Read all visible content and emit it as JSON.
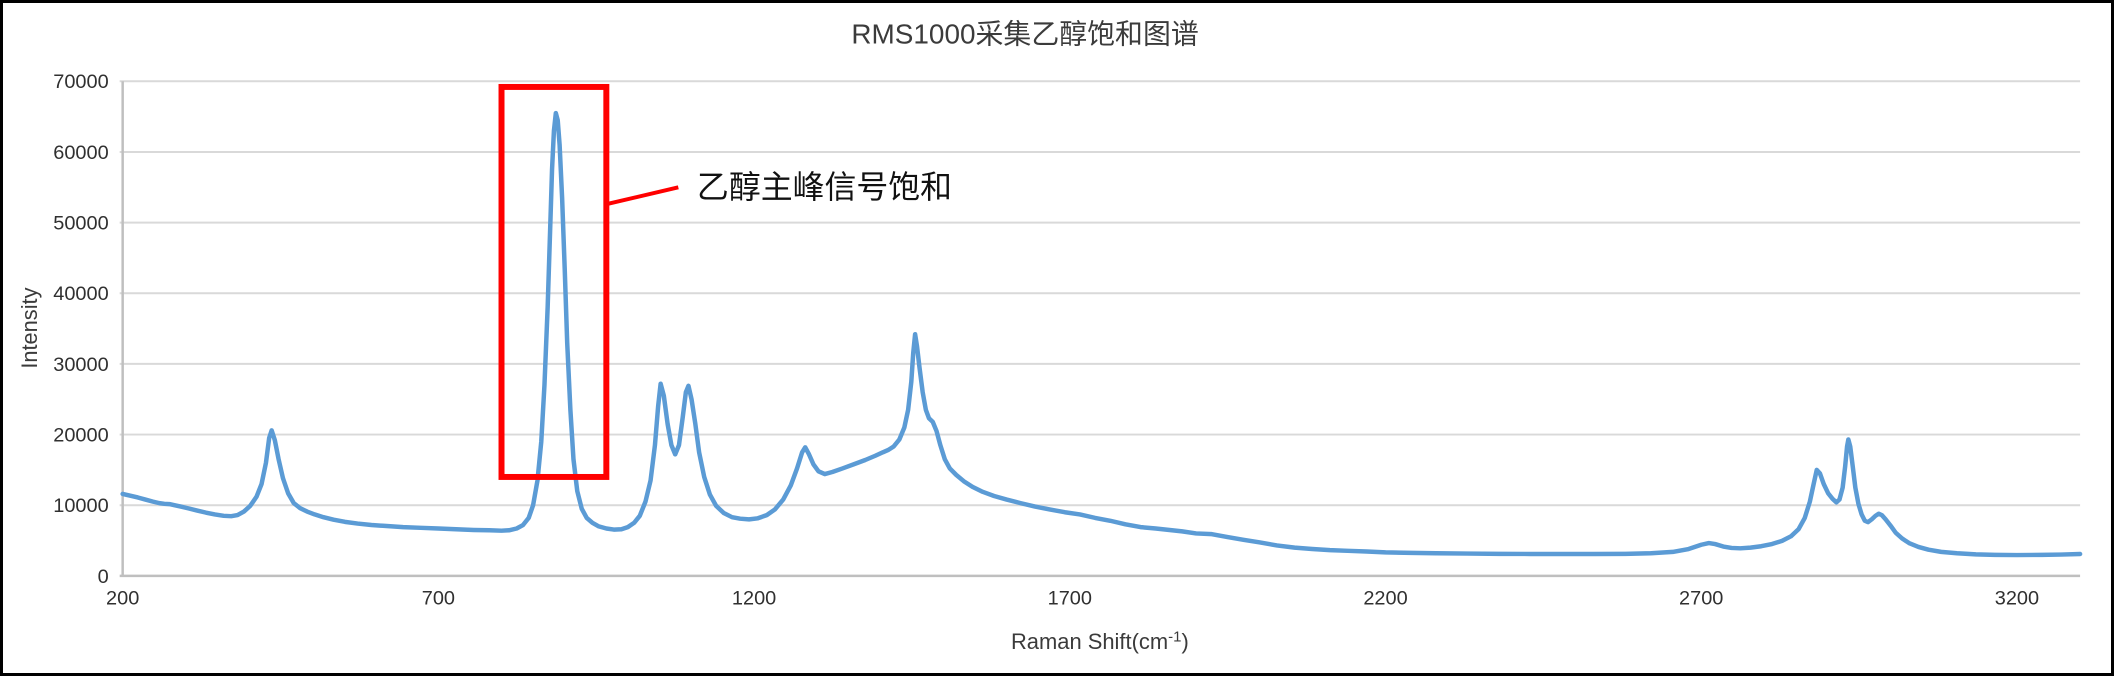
{
  "chart_data": {
    "type": "line",
    "title": "RMS1000采集乙醇饱和图谱",
    "ylabel": "Intensity",
    "xlabel": {
      "base": "Raman Shift(cm",
      "sup": "-1",
      "suffix": ")"
    },
    "xlim": [
      200,
      3300
    ],
    "ylim": [
      0,
      70000
    ],
    "x_ticks": [
      200,
      700,
      1200,
      1700,
      2200,
      2700,
      3200
    ],
    "y_ticks": [
      0,
      10000,
      20000,
      30000,
      40000,
      50000,
      60000,
      70000
    ],
    "grid": "horizontal",
    "legend": "none",
    "colors": {
      "line": "#5B9BD5",
      "gridline": "#D9D9D9",
      "axis": "#BFBFBF",
      "annotation": "#FF0000"
    },
    "series": [
      {
        "color": "#5B9BD5",
        "points": [
          [
            200,
            11600
          ],
          [
            212,
            11350
          ],
          [
            224,
            11100
          ],
          [
            236,
            10800
          ],
          [
            248,
            10500
          ],
          [
            258,
            10300
          ],
          [
            266,
            10200
          ],
          [
            274,
            10150
          ],
          [
            282,
            10000
          ],
          [
            292,
            9800
          ],
          [
            304,
            9550
          ],
          [
            318,
            9250
          ],
          [
            332,
            8950
          ],
          [
            346,
            8700
          ],
          [
            360,
            8500
          ],
          [
            372,
            8450
          ],
          [
            382,
            8600
          ],
          [
            392,
            9100
          ],
          [
            402,
            9900
          ],
          [
            412,
            11200
          ],
          [
            420,
            13000
          ],
          [
            427,
            16000
          ],
          [
            432,
            19500
          ],
          [
            436,
            20600
          ],
          [
            441,
            19200
          ],
          [
            447,
            16500
          ],
          [
            454,
            13800
          ],
          [
            462,
            11700
          ],
          [
            471,
            10300
          ],
          [
            481,
            9600
          ],
          [
            492,
            9100
          ],
          [
            504,
            8700
          ],
          [
            518,
            8300
          ],
          [
            534,
            7950
          ],
          [
            552,
            7650
          ],
          [
            572,
            7400
          ],
          [
            594,
            7200
          ],
          [
            618,
            7050
          ],
          [
            644,
            6900
          ],
          [
            672,
            6800
          ],
          [
            700,
            6700
          ],
          [
            728,
            6600
          ],
          [
            756,
            6500
          ],
          [
            780,
            6450
          ],
          [
            800,
            6400
          ],
          [
            812,
            6450
          ],
          [
            824,
            6700
          ],
          [
            834,
            7200
          ],
          [
            843,
            8200
          ],
          [
            850,
            10000
          ],
          [
            857,
            13500
          ],
          [
            863,
            19000
          ],
          [
            868,
            27000
          ],
          [
            873,
            38000
          ],
          [
            877,
            49000
          ],
          [
            880,
            57500
          ],
          [
            883,
            63000
          ],
          [
            886,
            65500
          ],
          [
            889,
            64500
          ],
          [
            892,
            61000
          ],
          [
            896,
            53500
          ],
          [
            900,
            43500
          ],
          [
            904,
            33000
          ],
          [
            909,
            23500
          ],
          [
            914,
            16500
          ],
          [
            920,
            12000
          ],
          [
            927,
            9500
          ],
          [
            935,
            8200
          ],
          [
            944,
            7500
          ],
          [
            954,
            7000
          ],
          [
            966,
            6700
          ],
          [
            978,
            6550
          ],
          [
            990,
            6600
          ],
          [
            1000,
            6900
          ],
          [
            1010,
            7500
          ],
          [
            1019,
            8500
          ],
          [
            1028,
            10500
          ],
          [
            1036,
            13500
          ],
          [
            1043,
            18500
          ],
          [
            1048,
            24000
          ],
          [
            1052,
            27200
          ],
          [
            1057,
            25500
          ],
          [
            1063,
            21500
          ],
          [
            1069,
            18500
          ],
          [
            1075,
            17200
          ],
          [
            1081,
            18500
          ],
          [
            1087,
            22500
          ],
          [
            1092,
            26000
          ],
          [
            1096,
            26900
          ],
          [
            1101,
            25000
          ],
          [
            1107,
            21500
          ],
          [
            1113,
            17500
          ],
          [
            1121,
            14000
          ],
          [
            1130,
            11500
          ],
          [
            1140,
            9900
          ],
          [
            1152,
            8900
          ],
          [
            1165,
            8300
          ],
          [
            1178,
            8100
          ],
          [
            1192,
            8000
          ],
          [
            1206,
            8150
          ],
          [
            1220,
            8600
          ],
          [
            1233,
            9400
          ],
          [
            1246,
            10800
          ],
          [
            1258,
            12800
          ],
          [
            1268,
            15200
          ],
          [
            1276,
            17500
          ],
          [
            1281,
            18200
          ],
          [
            1287,
            17200
          ],
          [
            1294,
            15800
          ],
          [
            1302,
            14800
          ],
          [
            1312,
            14400
          ],
          [
            1324,
            14700
          ],
          [
            1340,
            15200
          ],
          [
            1358,
            15800
          ],
          [
            1376,
            16400
          ],
          [
            1392,
            17000
          ],
          [
            1404,
            17500
          ],
          [
            1412,
            17800
          ],
          [
            1421,
            18300
          ],
          [
            1430,
            19300
          ],
          [
            1438,
            21000
          ],
          [
            1444,
            23500
          ],
          [
            1449,
            27500
          ],
          [
            1452,
            31500
          ],
          [
            1455,
            34200
          ],
          [
            1458,
            32500
          ],
          [
            1462,
            29500
          ],
          [
            1467,
            26000
          ],
          [
            1472,
            23500
          ],
          [
            1477,
            22300
          ],
          [
            1483,
            21800
          ],
          [
            1489,
            20500
          ],
          [
            1495,
            18500
          ],
          [
            1502,
            16500
          ],
          [
            1510,
            15200
          ],
          [
            1520,
            14300
          ],
          [
            1532,
            13400
          ],
          [
            1546,
            12600
          ],
          [
            1562,
            11900
          ],
          [
            1580,
            11300
          ],
          [
            1600,
            10800
          ],
          [
            1622,
            10300
          ],
          [
            1645,
            9800
          ],
          [
            1668,
            9400
          ],
          [
            1692,
            9000
          ],
          [
            1716,
            8700
          ],
          [
            1740,
            8200
          ],
          [
            1764,
            7800
          ],
          [
            1788,
            7300
          ],
          [
            1812,
            6900
          ],
          [
            1836,
            6700
          ],
          [
            1858,
            6500
          ],
          [
            1878,
            6300
          ],
          [
            1900,
            6000
          ],
          [
            1925,
            5900
          ],
          [
            1950,
            5500
          ],
          [
            1975,
            5100
          ],
          [
            2000,
            4750
          ],
          [
            2028,
            4300
          ],
          [
            2056,
            4000
          ],
          [
            2084,
            3800
          ],
          [
            2112,
            3650
          ],
          [
            2140,
            3550
          ],
          [
            2170,
            3450
          ],
          [
            2200,
            3330
          ],
          [
            2240,
            3250
          ],
          [
            2280,
            3200
          ],
          [
            2330,
            3150
          ],
          [
            2380,
            3120
          ],
          [
            2430,
            3100
          ],
          [
            2480,
            3100
          ],
          [
            2530,
            3100
          ],
          [
            2580,
            3120
          ],
          [
            2620,
            3200
          ],
          [
            2655,
            3400
          ],
          [
            2680,
            3800
          ],
          [
            2700,
            4400
          ],
          [
            2712,
            4650
          ],
          [
            2722,
            4500
          ],
          [
            2735,
            4150
          ],
          [
            2748,
            3950
          ],
          [
            2762,
            3900
          ],
          [
            2778,
            4000
          ],
          [
            2795,
            4200
          ],
          [
            2812,
            4500
          ],
          [
            2828,
            4950
          ],
          [
            2842,
            5600
          ],
          [
            2854,
            6600
          ],
          [
            2864,
            8200
          ],
          [
            2872,
            10500
          ],
          [
            2878,
            13000
          ],
          [
            2883,
            15000
          ],
          [
            2888,
            14500
          ],
          [
            2894,
            13000
          ],
          [
            2901,
            11700
          ],
          [
            2908,
            10900
          ],
          [
            2914,
            10400
          ],
          [
            2919,
            10800
          ],
          [
            2924,
            12500
          ],
          [
            2928,
            15500
          ],
          [
            2931,
            18300
          ],
          [
            2933,
            19300
          ],
          [
            2936,
            18300
          ],
          [
            2940,
            15500
          ],
          [
            2944,
            12500
          ],
          [
            2949,
            10200
          ],
          [
            2954,
            8700
          ],
          [
            2959,
            7800
          ],
          [
            2964,
            7600
          ],
          [
            2970,
            8000
          ],
          [
            2976,
            8500
          ],
          [
            2981,
            8800
          ],
          [
            2986,
            8600
          ],
          [
            2992,
            8000
          ],
          [
            3000,
            7100
          ],
          [
            3008,
            6100
          ],
          [
            3018,
            5300
          ],
          [
            3030,
            4600
          ],
          [
            3044,
            4100
          ],
          [
            3060,
            3700
          ],
          [
            3080,
            3400
          ],
          [
            3105,
            3200
          ],
          [
            3135,
            3050
          ],
          [
            3165,
            2980
          ],
          [
            3200,
            2950
          ],
          [
            3240,
            2970
          ],
          [
            3270,
            3020
          ],
          [
            3300,
            3100
          ]
        ]
      }
    ],
    "annotation": {
      "text": "乙醇主峰信号饱和",
      "color": "#FF0000",
      "box": {
        "x1": 800,
        "x2": 966,
        "y1": 14000,
        "y2": 69200
      },
      "leader": {
        "x1": 966,
        "y1": 52600,
        "x2": 1080,
        "y2": 55000
      },
      "text_anchor": {
        "x": 1100,
        "y": 55000
      }
    }
  }
}
